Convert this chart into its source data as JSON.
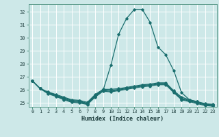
{
  "xlabel": "Humidex (Indice chaleur)",
  "bg_color": "#cde8e8",
  "grid_color": "#ffffff",
  "line_color": "#1a6e6e",
  "xlim": [
    -0.5,
    23.5
  ],
  "ylim": [
    24.7,
    32.6
  ],
  "xticks": [
    0,
    1,
    2,
    3,
    4,
    5,
    6,
    7,
    8,
    9,
    10,
    11,
    12,
    13,
    14,
    15,
    16,
    17,
    18,
    19,
    20,
    21,
    22,
    23
  ],
  "yticks": [
    25,
    26,
    27,
    28,
    29,
    30,
    31,
    32
  ],
  "series": [
    [
      26.7,
      26.1,
      25.85,
      25.55,
      25.35,
      25.15,
      25.1,
      24.95,
      25.55,
      25.95,
      27.9,
      30.3,
      31.5,
      32.2,
      32.2,
      31.2,
      29.3,
      28.7,
      27.5,
      25.8,
      25.25,
      25.1,
      24.9,
      24.85
    ],
    [
      26.7,
      26.1,
      25.85,
      25.65,
      25.45,
      25.25,
      25.2,
      25.05,
      25.65,
      26.05,
      26.05,
      26.1,
      26.2,
      26.3,
      26.4,
      26.45,
      26.55,
      26.55,
      25.95,
      25.45,
      25.25,
      25.1,
      24.95,
      24.9
    ],
    [
      26.7,
      26.1,
      25.8,
      25.6,
      25.4,
      25.2,
      25.15,
      24.98,
      25.6,
      26.0,
      25.95,
      26.05,
      26.15,
      26.25,
      26.35,
      26.4,
      26.5,
      26.5,
      25.9,
      25.35,
      25.2,
      25.05,
      24.9,
      24.85
    ],
    [
      26.7,
      26.1,
      25.75,
      25.55,
      25.3,
      25.1,
      25.05,
      24.92,
      25.5,
      25.95,
      25.9,
      26.0,
      26.1,
      26.2,
      26.3,
      26.35,
      26.45,
      26.45,
      25.85,
      25.3,
      25.15,
      25.0,
      24.85,
      24.8
    ],
    [
      26.7,
      26.1,
      25.7,
      25.5,
      25.25,
      25.05,
      25.0,
      24.88,
      25.45,
      25.9,
      25.85,
      25.95,
      26.05,
      26.15,
      26.25,
      26.3,
      26.4,
      26.4,
      25.8,
      25.25,
      25.1,
      24.95,
      24.8,
      24.75
    ]
  ]
}
